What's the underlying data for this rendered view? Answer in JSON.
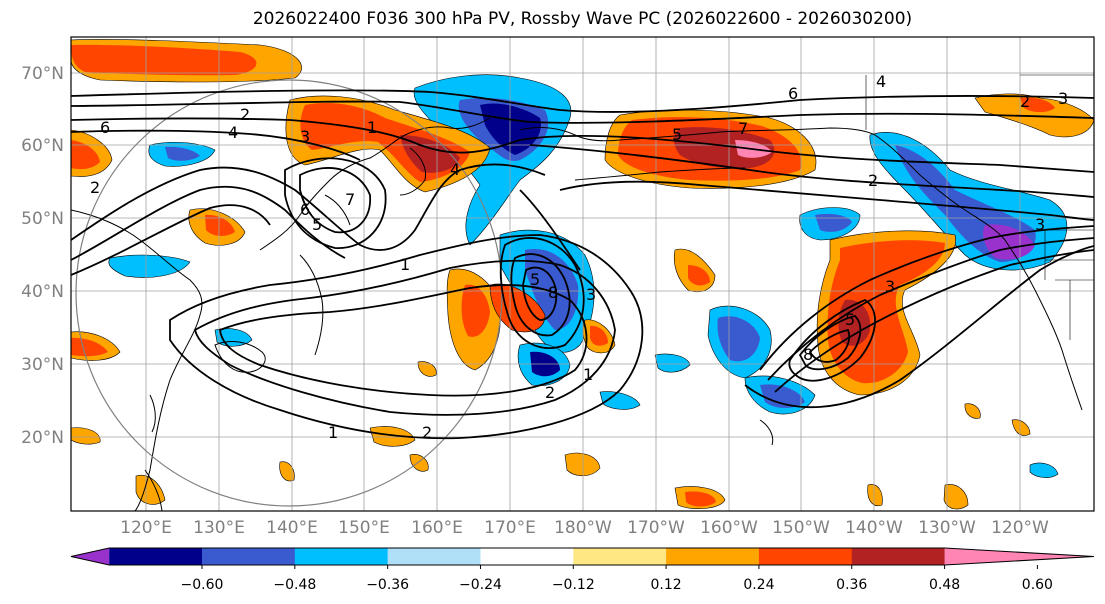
{
  "title": "2026022400 F036 300 hPa PV, Rossby Wave PC (2026022600 - 2026030200)",
  "lat_labels": [
    "70°N",
    "60°N",
    "50°N",
    "40°N",
    "30°N",
    "20°N"
  ],
  "lon_labels": [
    "120°E",
    "130°E",
    "140°E",
    "150°E",
    "160°E",
    "170°E",
    "180°W",
    "170°W",
    "160°W",
    "150°W",
    "140°W",
    "130°W",
    "120°W"
  ],
  "colorbar": {
    "ticks": [
      "−0.60",
      "−0.48",
      "−0.36",
      "−0.24",
      "−0.12",
      "0.12",
      "0.24",
      "0.36",
      "0.48",
      "0.60"
    ],
    "colors": [
      "#9932cc",
      "#00008b",
      "#3a5bd0",
      "#00bfff",
      "#b0e0f8",
      "#ffffff",
      "#ffe784",
      "#ffa500",
      "#ff4500",
      "#b22222",
      "#ff85b5"
    ]
  },
  "contour_labels": [
    "2",
    "6",
    "4",
    "3",
    "1",
    "2",
    "1",
    "6",
    "7",
    "5",
    "1",
    "2",
    "1",
    "7",
    "5",
    "4",
    "5",
    "8",
    "3",
    "2",
    "6",
    "4",
    "3",
    "2",
    "3",
    "5",
    "3",
    "8",
    "2"
  ]
}
